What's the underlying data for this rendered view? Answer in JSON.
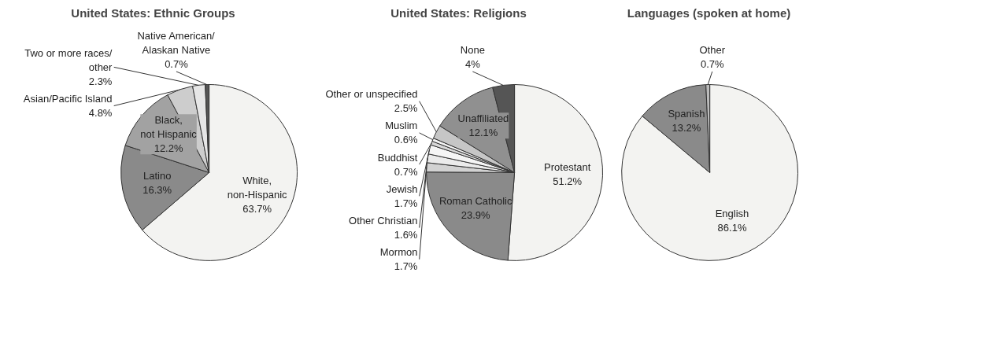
{
  "chart_data": [
    {
      "type": "pie",
      "title": "United States: Ethnic Groups",
      "categories": [
        "White, non-Hispanic",
        "Latino",
        "Black, not Hispanic",
        "Asian/Pacific Island",
        "Two or more races/other",
        "Native American/Alaskan Native"
      ],
      "values": [
        63.7,
        16.3,
        12.2,
        4.8,
        2.3,
        0.7
      ],
      "value_labels": [
        "63.7%",
        "16.3%",
        "12.2%",
        "4.8%",
        "2.3%",
        "0.7%"
      ],
      "colors": [
        "#f3f3f1",
        "#8a8a8a",
        "#a2a2a2",
        "#cdcdcd",
        "#e6e6e6",
        "#555555"
      ]
    },
    {
      "type": "pie",
      "title": "United States: Religions",
      "categories": [
        "Protestant",
        "Roman Catholic",
        "Mormon",
        "Other Christian",
        "Jewish",
        "Buddhist",
        "Muslim",
        "Other or unspecified",
        "Unaffiliated",
        "None"
      ],
      "values": [
        51.2,
        23.9,
        1.7,
        1.6,
        1.7,
        0.7,
        0.6,
        2.5,
        12.1,
        4
      ],
      "value_labels": [
        "51.2%",
        "23.9%",
        "1.7%",
        "1.6%",
        "1.7%",
        "0.7%",
        "0.6%",
        "2.5%",
        "12.1%",
        "4%"
      ],
      "colors": [
        "#f3f3f1",
        "#8a8a8a",
        "#d2d2d2",
        "#ebebeb",
        "#f5f5f5",
        "#d8d8d8",
        "#f3f3f3",
        "#c6c6c6",
        "#909090",
        "#555555"
      ]
    },
    {
      "type": "pie",
      "title": "Languages (spoken at home)",
      "categories": [
        "English",
        "Spanish",
        "Other"
      ],
      "values": [
        86.1,
        13.2,
        0.7
      ],
      "value_labels": [
        "86.1%",
        "13.2%",
        "0.7%"
      ],
      "colors": [
        "#f3f3f1",
        "#8a8a8a",
        "#bbbbbb"
      ]
    }
  ]
}
